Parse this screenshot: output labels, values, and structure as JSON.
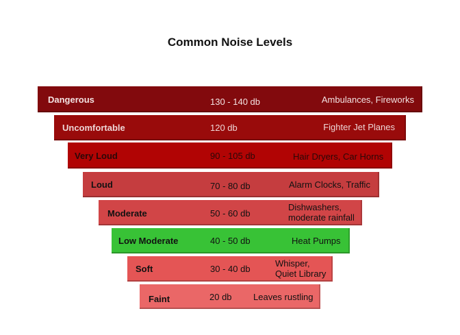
{
  "title": "Common Noise Levels",
  "levels": [
    {
      "label": "Dangerous",
      "range": "130 - 140  db",
      "example": "Ambulances, Fireworks",
      "color": "#820a0d",
      "text_color": "#f3e3e3"
    },
    {
      "label": "Uncomfortable",
      "range": "120  db",
      "example": "Fighter Jet Planes",
      "color": "#990b0b",
      "text_color": "#eed6d6"
    },
    {
      "label": "Very Loud",
      "range": "90 - 105  db",
      "example": "Hair Dryers, Car Horns",
      "color": "#b10404",
      "text_color": "#2a0808"
    },
    {
      "label": "Loud",
      "range": "70 - 80 db",
      "example": "Alarm Clocks, Traffic",
      "color": "#c53d3f",
      "text_color": "#111111"
    },
    {
      "label": "Moderate",
      "range": "50 - 60 db",
      "example": "Dishwashers, moderate rainfall",
      "color": "#d14547",
      "text_color": "#111111"
    },
    {
      "label": "Low Moderate",
      "range": "40 - 50 db",
      "example": "Heat Pumps",
      "color": "#38c236",
      "text_color": "#111111"
    },
    {
      "label": "Soft",
      "range": "30 - 40 db",
      "example": "Whisper, Quiet Library",
      "color": "#e45555",
      "text_color": "#111111"
    },
    {
      "label": "Faint",
      "range": "20 db",
      "example": "Leaves rustling",
      "color": "#ea6767",
      "text_color": "#111111"
    }
  ]
}
